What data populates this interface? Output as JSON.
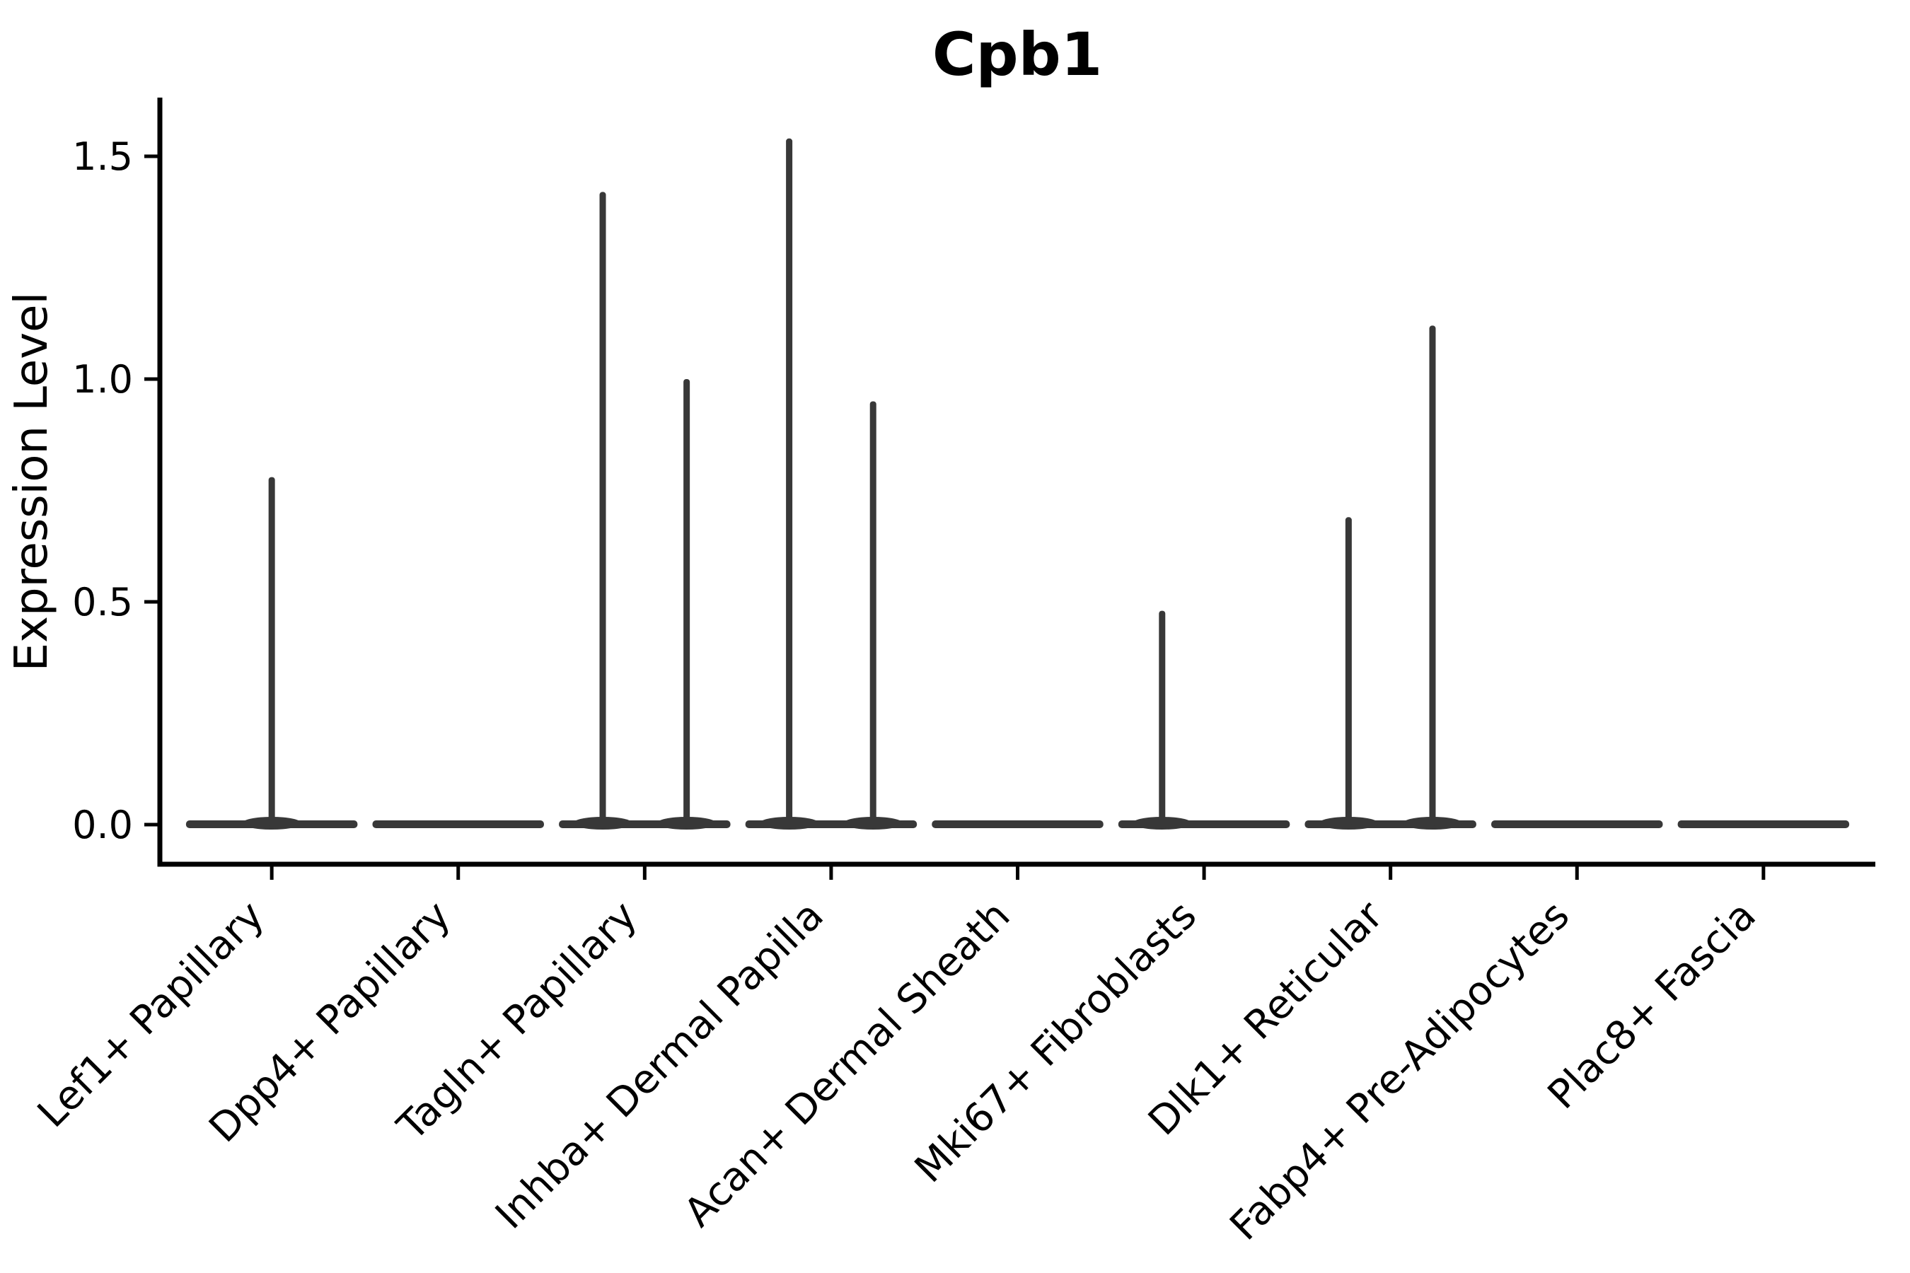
{
  "chart_data": {
    "type": "violin",
    "title": "Cpb1",
    "ylabel": "Expression Level",
    "xlabel": "",
    "yticks": [
      {
        "value": 0.0,
        "label": "0.0"
      },
      {
        "value": 0.5,
        "label": "0.5"
      },
      {
        "value": 1.0,
        "label": "1.0"
      },
      {
        "value": 1.5,
        "label": "1.5"
      }
    ],
    "ylim": [
      -0.09,
      1.63
    ],
    "grid": false,
    "legend": "none",
    "categories": [
      "Lef1+ Papillary",
      "Dpp4+ Papillary",
      "Tagln+ Papillary",
      "Inhba+ Dermal Papilla",
      "Acan+ Dermal Sheath",
      "Mki67+ Fibroblasts",
      "Dlk1+ Reticular",
      "Fabp4+ Pre-Adipocytes",
      "Plac8+ Fascia"
    ],
    "violins": [
      {
        "category": "Lef1+ Papillary",
        "base_width": 0.92,
        "spikes": [
          {
            "offset": 0.0,
            "max": 0.78
          }
        ]
      },
      {
        "category": "Dpp4+ Papillary",
        "base_width": 0.92,
        "spikes": []
      },
      {
        "category": "Tagln+ Papillary",
        "base_width": 0.92,
        "spikes": [
          {
            "offset": -0.225,
            "max": 1.42
          },
          {
            "offset": 0.225,
            "max": 1.0
          }
        ]
      },
      {
        "category": "Inhba+ Dermal Papilla",
        "base_width": 0.92,
        "spikes": [
          {
            "offset": -0.225,
            "max": 1.54
          },
          {
            "offset": 0.225,
            "max": 0.95
          }
        ]
      },
      {
        "category": "Acan+ Dermal Sheath",
        "base_width": 0.92,
        "spikes": []
      },
      {
        "category": "Mki67+ Fibroblasts",
        "base_width": 0.92,
        "spikes": [
          {
            "offset": -0.225,
            "max": 0.48
          }
        ]
      },
      {
        "category": "Dlk1+ Reticular",
        "base_width": 0.92,
        "spikes": [
          {
            "offset": -0.225,
            "max": 0.69
          },
          {
            "offset": 0.225,
            "max": 1.12
          }
        ]
      },
      {
        "category": "Fabp4+ Pre-Adipocytes",
        "base_width": 0.92,
        "spikes": []
      },
      {
        "category": "Plac8+ Fascia",
        "base_width": 0.92,
        "spikes": []
      }
    ],
    "colors": {
      "violin": "#383838",
      "spine": "#000000",
      "tick": "#000000",
      "text": "#000000",
      "background": "#ffffff"
    }
  }
}
